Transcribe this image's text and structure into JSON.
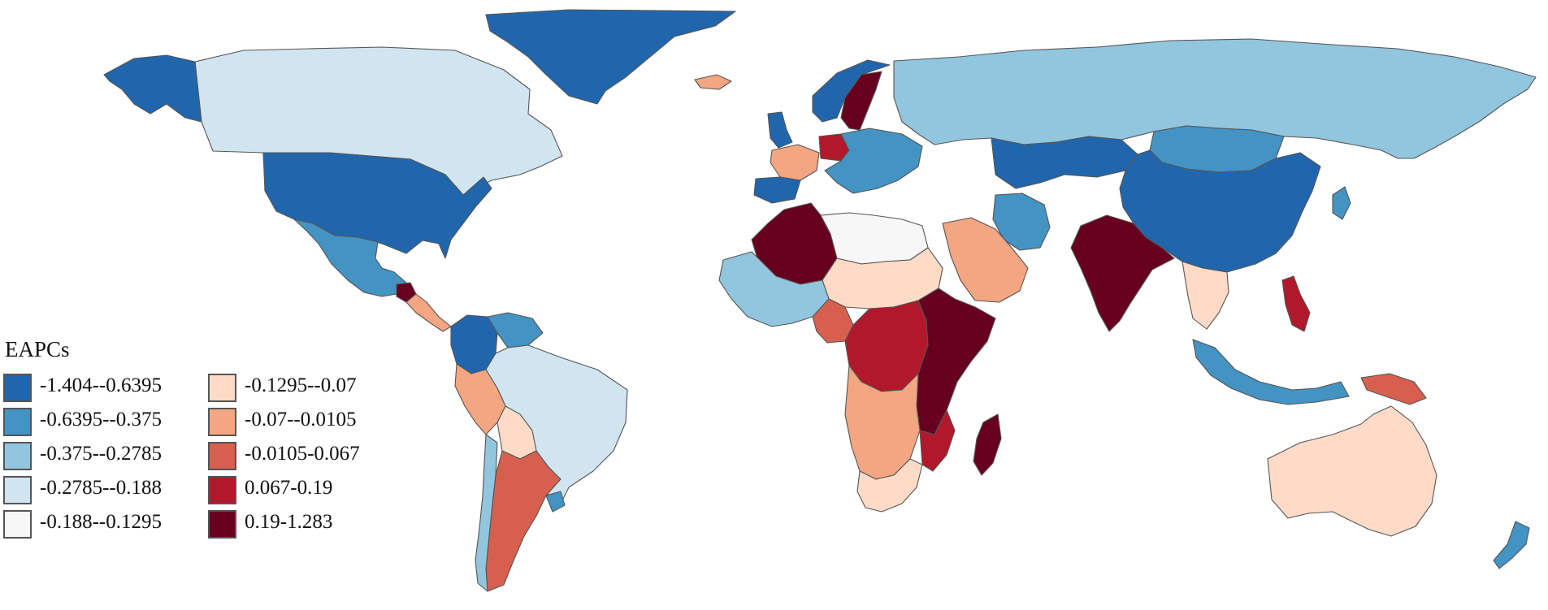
{
  "legend": {
    "title": "EAPCs",
    "items": [
      {
        "label": "-1.404--0.6395",
        "color": "#2166ac"
      },
      {
        "label": "-0.6395--0.375",
        "color": "#4393c3"
      },
      {
        "label": "-0.375--0.2785",
        "color": "#92c5de"
      },
      {
        "label": "-0.2785--0.188",
        "color": "#d1e5f0"
      },
      {
        "label": "-0.188--0.1295",
        "color": "#f7f7f7"
      },
      {
        "label": "-0.1295--0.07",
        "color": "#fddbc7"
      },
      {
        "label": "-0.07--0.0105",
        "color": "#f4a582"
      },
      {
        "label": "-0.0105-0.067",
        "color": "#d6604d"
      },
      {
        "label": "0.067-0.19",
        "color": "#b2182b"
      },
      {
        "label": "0.19-1.283",
        "color": "#67001f"
      }
    ]
  },
  "regions": {
    "greenland": "#2166ac",
    "canada": "#d1e5f0",
    "alaska": "#2166ac",
    "usa": "#2166ac",
    "mexico": "#4393c3",
    "central-america": "#f4a582",
    "guatemala": "#67001f",
    "colombia": "#2166ac",
    "venezuela": "#4393c3",
    "brazil": "#d1e5f0",
    "peru": "#f4a582",
    "bolivia": "#fddbc7",
    "argentina": "#d6604d",
    "chile": "#92c5de",
    "uruguay": "#4393c3",
    "iceland": "#f4a582",
    "norway": "#2166ac",
    "sweden": "#67001f",
    "uk": "#2166ac",
    "france": "#f4a582",
    "spain": "#2166ac",
    "germany": "#b2182b",
    "eastern-europe": "#4393c3",
    "russia": "#92c5de",
    "kazakhstan": "#2166ac",
    "china": "#2166ac",
    "mongolia": "#4393c3",
    "iran": "#4393c3",
    "saudi-arabia": "#f4a582",
    "india": "#67001f",
    "southeast-asia": "#fddbc7",
    "philippines": "#b2182b",
    "indonesia": "#4393c3",
    "papua-new-guinea": "#d6604d",
    "australia": "#fddbc7",
    "new-zealand": "#4393c3",
    "algeria": "#67001f",
    "sahara": "#f7f7f7",
    "sahel": "#fddbc7",
    "west-africa": "#92c5de",
    "nigeria": "#d6604d",
    "central-africa": "#b2182b",
    "east-africa": "#67001f",
    "southern-africa": "#f4a582",
    "south-africa": "#fddbc7",
    "mozambique": "#b2182b",
    "madagascar": "#67001f",
    "japan": "#4393c3"
  }
}
